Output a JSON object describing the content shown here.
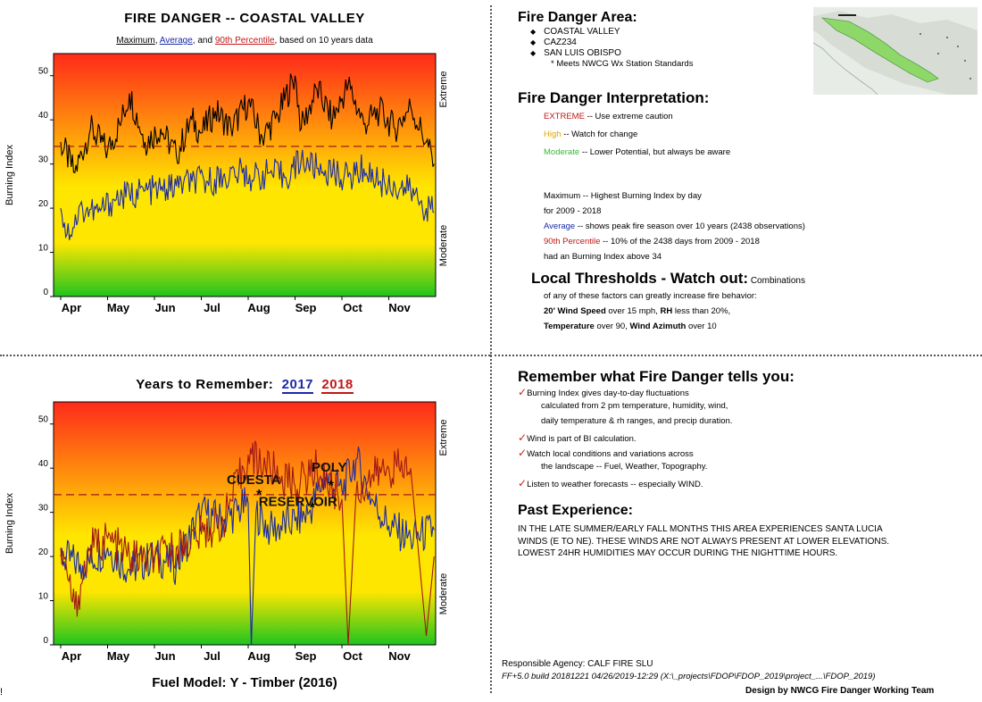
{
  "top_chart": {
    "title": "FIRE DANGER -- COASTAL VALLEY",
    "subtitle_max": "Maximum",
    "subtitle_sep1": ", ",
    "subtitle_avg": "Average",
    "subtitle_sep2": ", and ",
    "subtitle_p90": "90th Percentile",
    "subtitle_tail": ", based on 10 years data"
  },
  "bottom_chart": {
    "title": "Years to Remember:",
    "year_a": "2017",
    "year_b": "2018",
    "footer": "Fuel Model: Y - Timber (2016)"
  },
  "colors": {
    "extreme": "#ff2a1a",
    "high": "#ffe600",
    "moderate": "#1fc41f",
    "max_line": "#000000",
    "avg_line": "#1a2aa8",
    "y2017": "#1a2aa8",
    "y2018": "#a01818",
    "threshold": "#a01818"
  },
  "chart_data": [
    {
      "type": "line",
      "title": "FIRE DANGER -- COASTAL VALLEY",
      "ylabel": "Burning Index",
      "ylim": [
        0,
        55
      ],
      "yticks": [
        "0",
        "10",
        "20",
        "30",
        "40",
        "50"
      ],
      "xticks": [
        "Apr",
        "May",
        "Jun",
        "Jul",
        "Aug",
        "Sep",
        "Oct",
        "Nov"
      ],
      "band_labels": [
        "Extreme",
        "Moderate"
      ],
      "threshold": 34,
      "series": [
        {
          "name": "Maximum",
          "color": "#000000",
          "values": [
            [
              "Apr 1",
              35
            ],
            [
              "Apr 10",
              28
            ],
            [
              "Apr 20",
              38
            ],
            [
              "May 1",
              33
            ],
            [
              "May 10",
              40
            ],
            [
              "May 15",
              46
            ],
            [
              "May 25",
              35
            ],
            [
              "Jun 5",
              38
            ],
            [
              "Jun 15",
              32
            ],
            [
              "Jun 25",
              40
            ],
            [
              "Jul 1",
              37
            ],
            [
              "Jul 10",
              42
            ],
            [
              "Jul 20",
              38
            ],
            [
              "Aug 1",
              44
            ],
            [
              "Aug 10",
              36
            ],
            [
              "Aug 20",
              41
            ],
            [
              "Sep 1",
              50
            ],
            [
              "Sep 5",
              38
            ],
            [
              "Sep 15",
              47
            ],
            [
              "Sep 25",
              40
            ],
            [
              "Oct 5",
              48
            ],
            [
              "Oct 15",
              39
            ],
            [
              "Oct 25",
              42
            ],
            [
              "Nov 5",
              38
            ],
            [
              "Nov 15",
              43
            ],
            [
              "Nov 25",
              35
            ],
            [
              "Nov 30",
              30
            ]
          ]
        },
        {
          "name": "Average",
          "color": "#1a2aa8",
          "values": [
            [
              "Apr 1",
              20
            ],
            [
              "Apr 5",
              14
            ],
            [
              "Apr 15",
              20
            ],
            [
              "Apr 25",
              19
            ],
            [
              "May 5",
              22
            ],
            [
              "May 15",
              23
            ],
            [
              "May 25",
              24
            ],
            [
              "Jun 5",
              24
            ],
            [
              "Jun 15",
              25
            ],
            [
              "Jun 25",
              26
            ],
            [
              "Jul 5",
              26
            ],
            [
              "Jul 15",
              27
            ],
            [
              "Jul 25",
              28
            ],
            [
              "Aug 5",
              27
            ],
            [
              "Aug 15",
              28
            ],
            [
              "Aug 25",
              27
            ],
            [
              "Sep 5",
              31
            ],
            [
              "Sep 15",
              29
            ],
            [
              "Sep 25",
              28
            ],
            [
              "Oct 5",
              27
            ],
            [
              "Oct 15",
              29
            ],
            [
              "Oct 25",
              26
            ],
            [
              "Nov 5",
              25
            ],
            [
              "Nov 15",
              24
            ],
            [
              "Nov 25",
              20
            ],
            [
              "Nov 30",
              19
            ]
          ]
        }
      ]
    },
    {
      "type": "line",
      "title": "Years to Remember: 2017 2018",
      "ylabel": "Burning Index",
      "ylim": [
        0,
        55
      ],
      "yticks": [
        "0",
        "10",
        "20",
        "30",
        "40",
        "50"
      ],
      "xticks": [
        "Apr",
        "May",
        "Jun",
        "Jul",
        "Aug",
        "Sep",
        "Oct",
        "Nov"
      ],
      "band_labels": [
        "Extreme",
        "Moderate"
      ],
      "threshold": 34,
      "series": [
        {
          "name": "2017",
          "color": "#1a2aa8",
          "values": [
            [
              "Apr 1",
              20
            ],
            [
              "Apr 15",
              18
            ],
            [
              "May 1",
              22
            ],
            [
              "May 15",
              17
            ],
            [
              "Jun 1",
              20
            ],
            [
              "Jun 15",
              18
            ],
            [
              "Jul 1",
              30
            ],
            [
              "Jul 15",
              28
            ],
            [
              "Aug 1",
              32
            ],
            [
              "Aug 3",
              0
            ],
            [
              "Aug 6",
              30
            ],
            [
              "Aug 15",
              26
            ],
            [
              "Sep 1",
              28
            ],
            [
              "Sep 10",
              30
            ],
            [
              "Sep 20",
              38
            ],
            [
              "Oct 1",
              35
            ],
            [
              "Oct 10",
              42
            ],
            [
              "Oct 20",
              33
            ],
            [
              "Nov 1",
              27
            ],
            [
              "Nov 15",
              24
            ],
            [
              "Nov 30",
              26
            ]
          ]
        },
        {
          "name": "2018",
          "color": "#a01818",
          "values": [
            [
              "Apr 1",
              22
            ],
            [
              "Apr 10",
              8
            ],
            [
              "Apr 20",
              22
            ],
            [
              "May 1",
              24
            ],
            [
              "May 15",
              20
            ],
            [
              "Jun 1",
              19
            ],
            [
              "Jun 15",
              22
            ],
            [
              "Jul 1",
              25
            ],
            [
              "Jul 15",
              28
            ],
            [
              "Aug 1",
              43
            ],
            [
              "Aug 15",
              40
            ],
            [
              "Sep 1",
              36
            ],
            [
              "Sep 15",
              40
            ],
            [
              "Oct 1",
              33
            ],
            [
              "Oct 5",
              0
            ],
            [
              "Oct 10",
              34
            ],
            [
              "Oct 20",
              38
            ],
            [
              "Nov 1",
              40
            ],
            [
              "Nov 15",
              40
            ],
            [
              "Nov 25",
              2
            ],
            [
              "Nov 30",
              20
            ]
          ]
        }
      ],
      "annotations": [
        {
          "label": "CUESTA",
          "x": "Aug 8",
          "y": 34
        },
        {
          "label": "RESERVOIR",
          "x": "Sep 12",
          "y": 31
        },
        {
          "label": "POLY",
          "x": "Sep 24",
          "y": 36
        }
      ]
    }
  ],
  "area": {
    "heading": "Fire Danger Area:",
    "items": [
      "COASTAL VALLEY",
      "CAZ234",
      "SAN LUIS OBISPO"
    ],
    "meets": "* Meets NWCG Wx Station Standards"
  },
  "interpretation": {
    "heading": "Fire Danger Interpretation:",
    "extreme_label": "EXTREME",
    "extreme_text": "-- Use extreme caution",
    "high_label": "High",
    "high_text": "-- Watch for change",
    "moderate_label": "Moderate",
    "moderate_text": "-- Lower Potential, but always be aware"
  },
  "legend": {
    "max_line1": "Maximum  -- Highest Burning Index by day",
    "max_line2": "for 2009 - 2018",
    "avg_label": "Average",
    "avg_text": "-- shows peak fire season over 10 years (2438 observations)",
    "p90_label": "90th Percentile",
    "p90_text": "-- 10% of the 2438 days from 2009 - 2018",
    "p90_line2": "had an Burning Index above 34"
  },
  "thresholds": {
    "heading": "Local Thresholds - Watch out:",
    "heading_tail": "Combinations",
    "line1": "of any of these factors can greatly increase fire behavior:",
    "wind_label": "20' Wind Speed",
    "wind_text": " over 15 mph, ",
    "rh_label": "RH",
    "rh_text": "  less than 20%,",
    "temp_label": "Temperature",
    "temp_text": " over 90, ",
    "az_label": "Wind Azimuth",
    "az_text": " over 10"
  },
  "remember": {
    "heading": "Remember what Fire Danger tells you:",
    "lines": [
      "Burning Index gives day-to-day fluctuations",
      "calculated from 2 pm temperature, humidity, wind,",
      "daily temperature & rh ranges, and precip duration.",
      "Wind is part of BI calculation.",
      "Watch local conditions and variations across",
      "the landscape -- Fuel, Weather, Topography.",
      "Listen to weather forecasts -- especially WIND."
    ]
  },
  "past": {
    "heading": "Past Experience:",
    "text": [
      "IN THE LATE SUMMER/EARLY FALL MONTHS THIS AREA EXPERIENCES SANTA LUCIA",
      "WINDS (E TO NE). THESE WINDS ARE NOT ALWAYS PRESENT AT LOWER ELEVATIONS.",
      "LOWEST 24HR HUMIDITIES MAY OCCUR DURING THE NIGHTTIME HOURS."
    ]
  },
  "footer": {
    "agency": "Responsible Agency: CALF FIRE SLU",
    "build": "FF+5.0 build 20181221 04/26/2019-12:29 (X:\\_projects\\FDOP\\FDOP_2019\\project_...\\FDOP_2019)",
    "design": "Design by NWCG Fire Danger Working Team"
  },
  "edge_mark": "!"
}
